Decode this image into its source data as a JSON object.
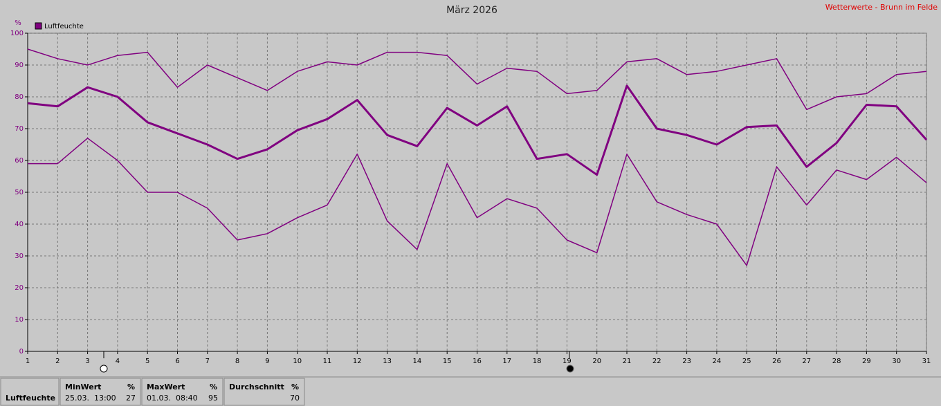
{
  "chart_data": {
    "type": "line",
    "title": "März 2026",
    "source": "Wetterwerte - Brunn im Felde",
    "y_unit": "%",
    "x": [
      1,
      2,
      3,
      4,
      5,
      6,
      7,
      8,
      9,
      10,
      11,
      12,
      13,
      14,
      15,
      16,
      17,
      18,
      19,
      20,
      21,
      22,
      23,
      24,
      25,
      26,
      27,
      28,
      29,
      30,
      31
    ],
    "series": [
      {
        "name": "Luftfeuchte",
        "color": "#800080",
        "width": 1.5,
        "values": [
          95,
          92,
          90,
          93,
          94,
          83,
          90,
          86,
          82,
          88,
          91,
          90,
          94,
          94,
          93,
          84,
          89,
          88,
          81,
          82,
          91,
          92,
          87,
          88,
          90,
          92,
          76,
          80,
          81,
          87,
          88
        ]
      },
      {
        "color": "#800080",
        "width": 3,
        "values": [
          78,
          77,
          83,
          80,
          72,
          68.5,
          65,
          60.5,
          63.5,
          69.5,
          73,
          79,
          68,
          64.5,
          76.5,
          71,
          77,
          60.5,
          62,
          55.5,
          83.5,
          70,
          68,
          65,
          70.5,
          71,
          58,
          65.5,
          77.5,
          77,
          66.5
        ]
      },
      {
        "color": "#800080",
        "width": 1.5,
        "values": [
          59,
          59,
          67,
          60,
          50,
          50,
          45,
          35,
          37,
          42,
          46,
          62,
          41,
          32,
          59,
          42,
          48,
          45,
          35,
          31,
          62,
          47,
          43,
          40,
          27,
          58,
          46,
          57,
          54,
          61,
          53
        ]
      }
    ],
    "xlim": [
      1,
      31
    ],
    "xticks": [
      1,
      2,
      3,
      4,
      5,
      6,
      7,
      8,
      9,
      10,
      11,
      12,
      13,
      14,
      15,
      16,
      17,
      18,
      19,
      20,
      21,
      22,
      23,
      24,
      25,
      26,
      27,
      28,
      29,
      30,
      31
    ],
    "ylim": [
      0,
      100
    ],
    "yticks": [
      0,
      10,
      20,
      30,
      40,
      50,
      60,
      70,
      80,
      90,
      100
    ],
    "grid": true,
    "legend": "top-left"
  },
  "summary": {
    "label": "Luftfeuchte",
    "columns": [
      {
        "header": "MinWert",
        "unit": "%",
        "time": "25.03.  13:00",
        "value": 27
      },
      {
        "header": "MaxWert",
        "unit": "%",
        "time": "01.03.  08:40",
        "value": 95
      },
      {
        "header": "Durchschnitt",
        "unit": "%",
        "value": 70
      }
    ]
  }
}
